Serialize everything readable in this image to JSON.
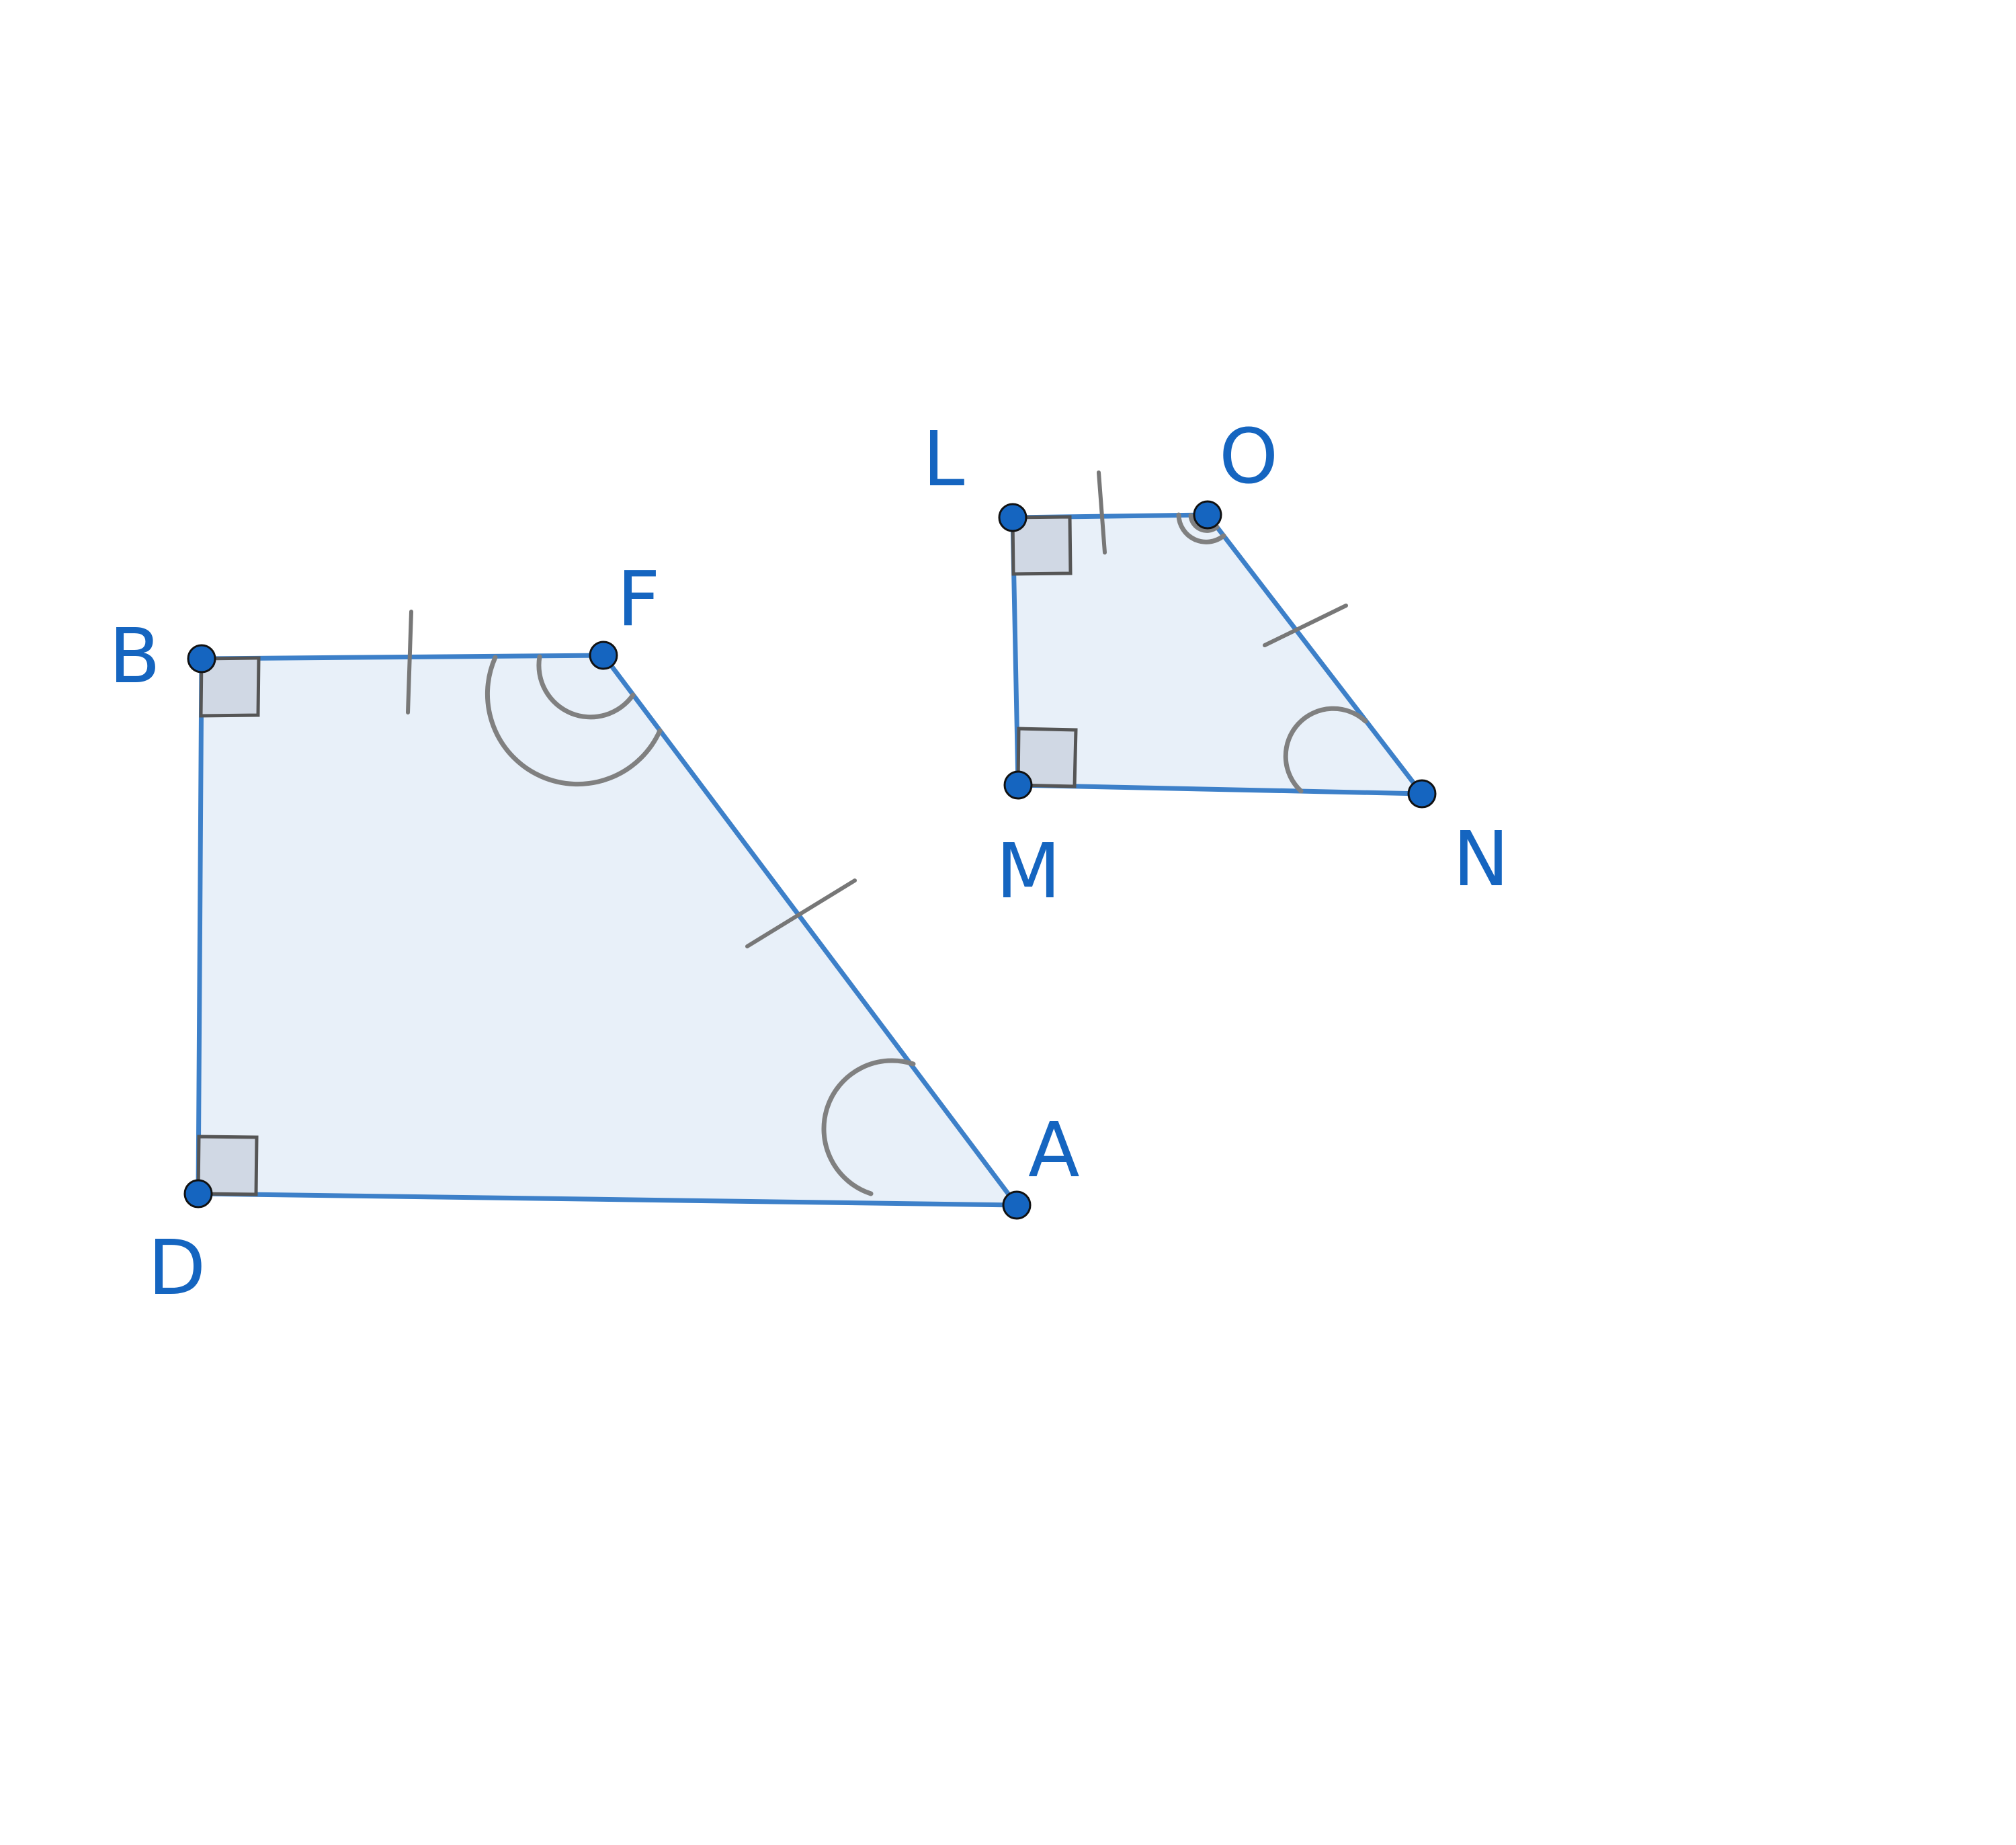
{
  "figure": {
    "background": "#ffffff",
    "fill_color": "#e8f0f9",
    "edge_color": "#3d80c9",
    "mark_color": "#808080",
    "point_color": "#1565c0",
    "label_color": "#1565c0"
  },
  "quadrilateral_BFAD": {
    "labels": {
      "B": "B",
      "F": "F",
      "A": "A",
      "D": "D"
    },
    "right_angles": [
      "B",
      "D"
    ],
    "congruent_sides": [
      "BF",
      "FA"
    ]
  },
  "quadrilateral_LONM": {
    "labels": {
      "L": "L",
      "O": "O",
      "N": "N",
      "M": "M"
    },
    "right_angles": [
      "L",
      "M"
    ],
    "congruent_sides": [
      "LO",
      "ON"
    ]
  }
}
